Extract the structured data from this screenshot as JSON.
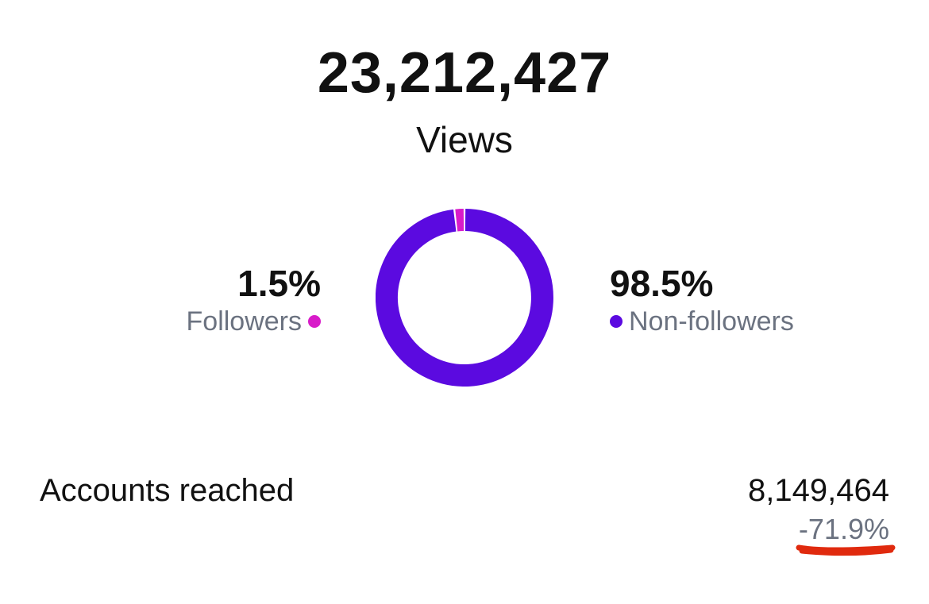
{
  "views": {
    "count": "23,212,427",
    "label": "Views"
  },
  "audience": {
    "followers": {
      "percent_text": "1.5%",
      "label": "Followers",
      "value": 1.5,
      "color": "#d81bc9"
    },
    "non_followers": {
      "percent_text": "98.5%",
      "label": "Non-followers",
      "value": 98.5,
      "color": "#5b0ae0"
    }
  },
  "accounts_reached": {
    "label": "Accounts reached",
    "value": "8,149,464",
    "change": "-71.9%"
  },
  "annotation": {
    "underline_color": "#e02a0e"
  }
}
